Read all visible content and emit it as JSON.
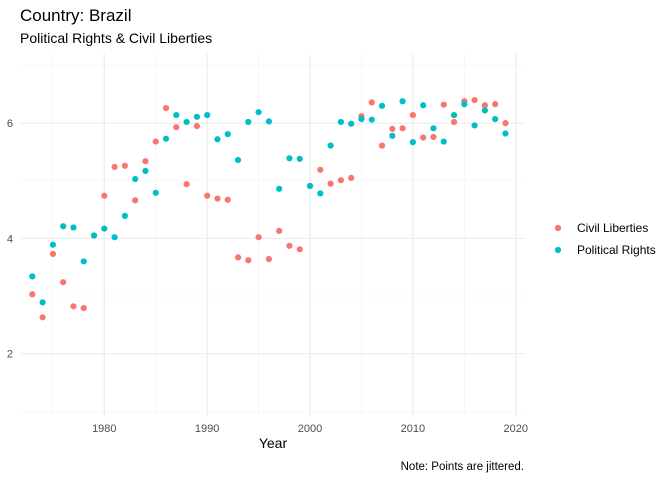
{
  "chart_data": {
    "type": "scatter",
    "title": "Country: Brazil",
    "subtitle": "Political Rights & Civil Liberties",
    "xlabel": "Year",
    "ylabel": "",
    "caption": "Note: Points are jittered.",
    "xlim": [
      1971.9,
      2020.9
    ],
    "ylim": [
      0.9,
      7.2
    ],
    "x_ticks": [
      1980,
      1990,
      2000,
      2010,
      2020
    ],
    "y_ticks": [
      2,
      4,
      6
    ],
    "grid": true,
    "legend_position": "right",
    "series": [
      {
        "name": "Civil Liberties",
        "color": "#F8766D",
        "points": [
          [
            1973,
            3.03
          ],
          [
            1974,
            2.63
          ],
          [
            1975,
            3.73
          ],
          [
            1976,
            3.24
          ],
          [
            1977,
            2.82
          ],
          [
            1978,
            2.79
          ],
          [
            1979,
            4.05
          ],
          [
            1980,
            4.74
          ],
          [
            1981,
            5.24
          ],
          [
            1982,
            5.26
          ],
          [
            1983,
            4.66
          ],
          [
            1984,
            5.34
          ],
          [
            1985,
            5.68
          ],
          [
            1986,
            6.26
          ],
          [
            1987,
            5.93
          ],
          [
            1988,
            4.94
          ],
          [
            1989,
            5.95
          ],
          [
            1990,
            4.74
          ],
          [
            1991,
            4.69
          ],
          [
            1992,
            4.67
          ],
          [
            1993,
            3.67
          ],
          [
            1994,
            3.62
          ],
          [
            1995,
            4.02
          ],
          [
            1996,
            3.64
          ],
          [
            1997,
            4.13
          ],
          [
            1998,
            3.87
          ],
          [
            1999,
            3.81
          ],
          [
            2000,
            4.91
          ],
          [
            2001,
            5.19
          ],
          [
            2002,
            4.95
          ],
          [
            2003,
            5.01
          ],
          [
            2004,
            5.05
          ],
          [
            2005,
            6.12
          ],
          [
            2006,
            6.36
          ],
          [
            2007,
            5.61
          ],
          [
            2008,
            5.9
          ],
          [
            2009,
            5.91
          ],
          [
            2010,
            6.14
          ],
          [
            2011,
            5.75
          ],
          [
            2012,
            5.76
          ],
          [
            2013,
            6.32
          ],
          [
            2014,
            6.02
          ],
          [
            2015,
            6.38
          ],
          [
            2016,
            6.4
          ],
          [
            2017,
            6.31
          ],
          [
            2018,
            6.33
          ],
          [
            2019,
            6.0
          ]
        ]
      },
      {
        "name": "Political Rights",
        "color": "#00BFC4",
        "points": [
          [
            1973,
            3.34
          ],
          [
            1974,
            2.89
          ],
          [
            1975,
            3.89
          ],
          [
            1976,
            4.21
          ],
          [
            1977,
            4.19
          ],
          [
            1978,
            3.6
          ],
          [
            1979,
            4.05
          ],
          [
            1980,
            4.17
          ],
          [
            1981,
            4.02
          ],
          [
            1982,
            4.39
          ],
          [
            1983,
            5.03
          ],
          [
            1984,
            5.17
          ],
          [
            1985,
            4.79
          ],
          [
            1986,
            5.73
          ],
          [
            1987,
            6.14
          ],
          [
            1988,
            6.02
          ],
          [
            1989,
            6.11
          ],
          [
            1990,
            6.14
          ],
          [
            1991,
            5.72
          ],
          [
            1992,
            5.81
          ],
          [
            1993,
            5.36
          ],
          [
            1994,
            6.02
          ],
          [
            1995,
            6.19
          ],
          [
            1996,
            6.03
          ],
          [
            1997,
            4.86
          ],
          [
            1998,
            5.39
          ],
          [
            1999,
            5.38
          ],
          [
            2000,
            4.91
          ],
          [
            2001,
            4.78
          ],
          [
            2002,
            5.61
          ],
          [
            2003,
            6.02
          ],
          [
            2004,
            5.99
          ],
          [
            2005,
            6.07
          ],
          [
            2006,
            6.06
          ],
          [
            2007,
            6.3
          ],
          [
            2008,
            5.78
          ],
          [
            2009,
            6.38
          ],
          [
            2010,
            5.67
          ],
          [
            2011,
            6.31
          ],
          [
            2012,
            5.91
          ],
          [
            2013,
            5.68
          ],
          [
            2014,
            6.14
          ],
          [
            2015,
            6.33
          ],
          [
            2016,
            5.96
          ],
          [
            2017,
            6.22
          ],
          [
            2018,
            6.07
          ],
          [
            2019,
            5.82
          ]
        ]
      }
    ]
  }
}
